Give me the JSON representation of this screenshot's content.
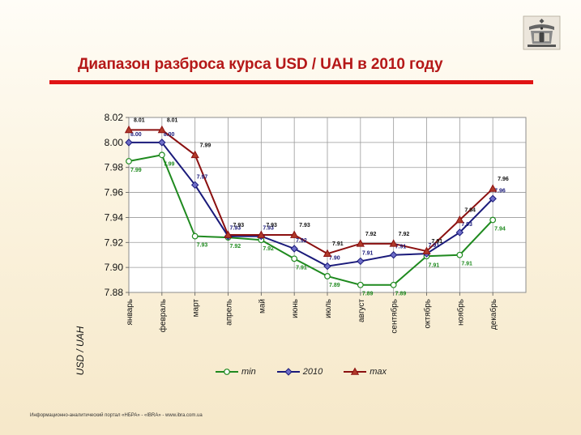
{
  "title": "Диапазон разброса курса USD / UAH в 2010 году",
  "footer": "Информационно-аналитический   портал  «НБРА» - «IBRA» - www.ibra.com.ua",
  "logo_icon": "ibra-emblem-icon",
  "colors": {
    "title": "#b51818",
    "rule": "#e01414",
    "min": "#1f8a1f",
    "avg": "#1a1a7a",
    "max": "#8b1010"
  },
  "chart_data": {
    "type": "line",
    "categories": [
      "январь",
      "февраль",
      "март",
      "апрель",
      "май",
      "июнь",
      "июль",
      "август",
      "сентябрь",
      "октябрь",
      "ноябрь",
      "декабрь"
    ],
    "ylabel": "USD / UAH",
    "xlabel": "",
    "ylim": [
      7.88,
      8.02
    ],
    "yticks": [
      "7.88",
      "7.90",
      "7.92",
      "7.94",
      "7.96",
      "7.98",
      "8.00",
      "8.02"
    ],
    "grid": true,
    "legend_position": "bottom",
    "series": [
      {
        "name": "min",
        "values": [
          7.985,
          7.99,
          7.925,
          7.924,
          7.922,
          7.907,
          7.893,
          7.886,
          7.886,
          7.909,
          7.91,
          7.938
        ],
        "labels": [
          "7.99",
          "7.99",
          "7.93",
          "7.92",
          "7.92",
          "7.91",
          "7.89",
          "7.89",
          "7.89",
          "7.91",
          "7.91",
          "7.94"
        ]
      },
      {
        "name": "2010",
        "values": [
          8.0,
          8.0,
          7.966,
          7.925,
          7.925,
          7.915,
          7.901,
          7.905,
          7.91,
          7.911,
          7.928,
          7.955
        ],
        "labels": [
          "8.00",
          "8.00",
          "7.97",
          "7.93",
          "7.93",
          "7.92",
          "7.90",
          "7.91",
          "7.91",
          "7.91",
          "7.93",
          "7.96"
        ]
      },
      {
        "name": "max",
        "values": [
          8.01,
          8.01,
          7.99,
          7.926,
          7.926,
          7.926,
          7.911,
          7.919,
          7.919,
          7.913,
          7.938,
          7.963
        ],
        "labels": [
          "8.01",
          "8.01",
          "7.99",
          "7.93",
          "7.93",
          "7.93",
          "7.91",
          "7.92",
          "7.92",
          "7.91",
          "7.94",
          "7.96"
        ]
      }
    ]
  }
}
